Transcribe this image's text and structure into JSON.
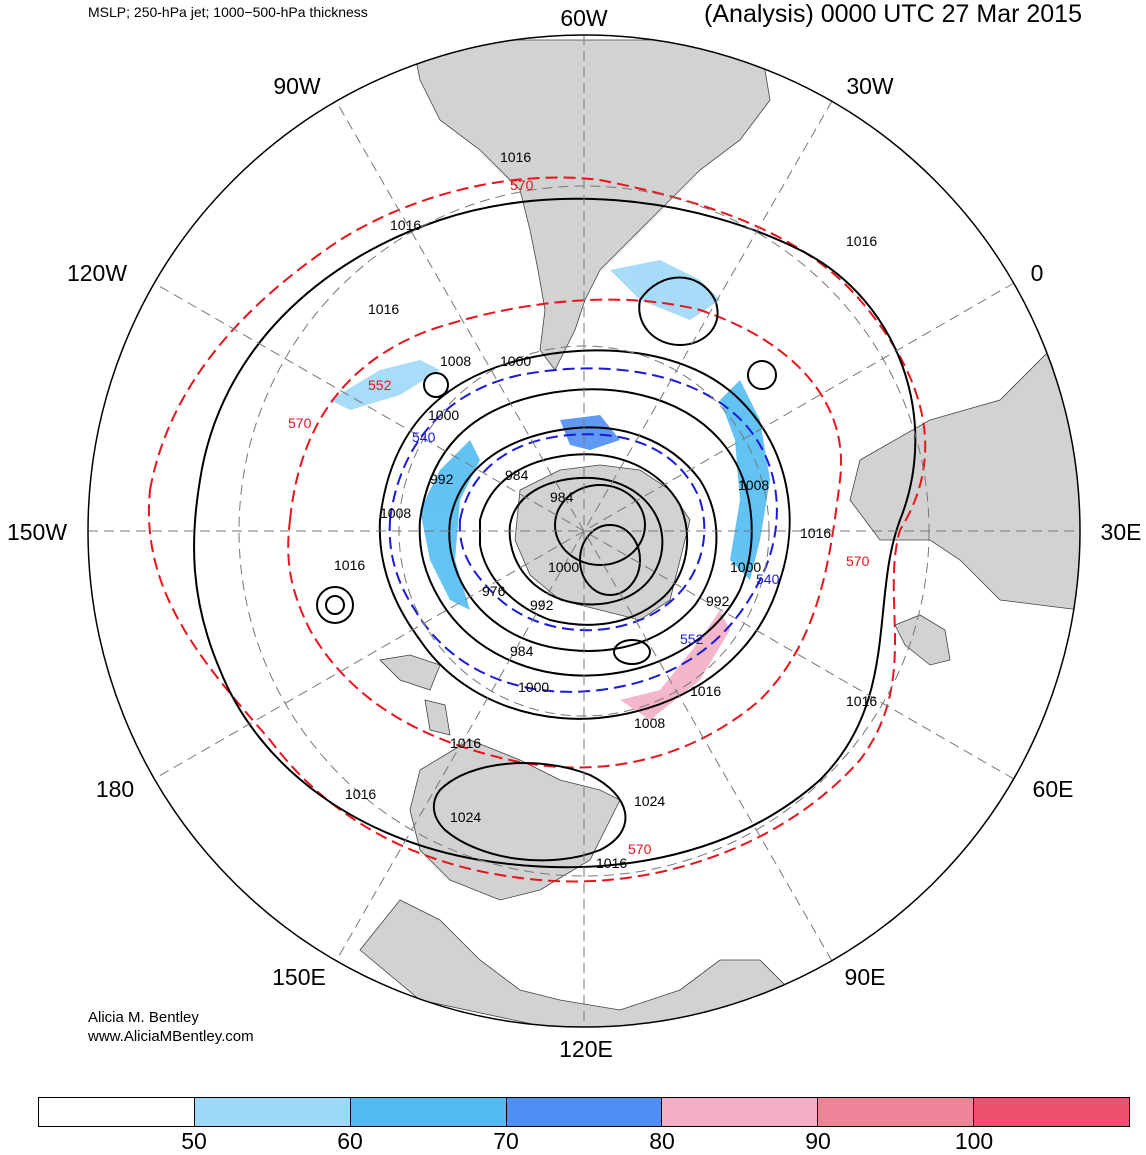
{
  "header": {
    "fields_title": "MSLP; 250-hPa jet; 1000−500-hPa thickness",
    "valid_time": "(Analysis) 0000 UTC 27 Mar 2015"
  },
  "credit": {
    "author": "Alicia M. Bentley",
    "website": "www.AliciaMBentley.com"
  },
  "map": {
    "projection": "south-polar-stereographic",
    "longitude_labels": [
      "60W",
      "30W",
      "0",
      "30E",
      "60E",
      "90E",
      "120E",
      "150E",
      "180",
      "150W",
      "120W",
      "90W"
    ],
    "isobar_labels": [
      "1016",
      "1016",
      "1016",
      "1016",
      "1008",
      "1000",
      "1000",
      "992",
      "984",
      "984",
      "1008",
      "1016",
      "1000",
      "992",
      "976",
      "992",
      "1000",
      "984",
      "1000",
      "1016",
      "1008",
      "1016",
      "1024",
      "1024",
      "1016",
      "1016",
      "1016",
      "1008",
      "1016"
    ],
    "thickness_labels": [
      "570",
      "552",
      "570",
      "540",
      "570",
      "540",
      "570",
      "552"
    ],
    "colors": {
      "land": "#d2d2d2",
      "isobar": "#000000",
      "thickness_warm": "#e8141c",
      "thickness_cold": "#1a1ad8",
      "graticule": "#777777"
    }
  },
  "colorbar": {
    "title": "250-hPa jet",
    "ticks": [
      "50",
      "60",
      "70",
      "80",
      "90",
      "100"
    ],
    "colors": [
      "#ffffff",
      "#9ed8f7",
      "#52bcf2",
      "#4f8ef2",
      "#f3afc4",
      "#ef8499",
      "#eb506f"
    ]
  }
}
